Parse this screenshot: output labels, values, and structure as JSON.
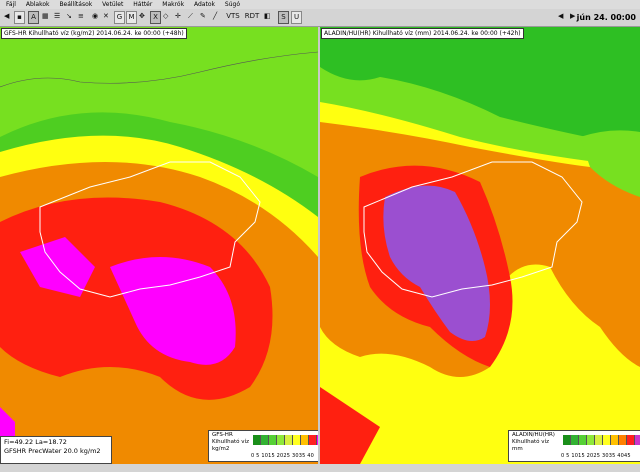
{
  "menu": [
    "Fájl",
    "Ablakok",
    "Beállítások",
    "Vetület",
    "Háttér",
    "Makrók",
    "Adatok",
    "Súgó"
  ],
  "toolbar": {
    "vts": "VTS",
    "rdt": "RDT",
    "s": "S",
    "u": "U",
    "a": "A",
    "g": "G",
    "m": "M",
    "x": "X",
    "date": "jún 24. 00:00"
  },
  "left_panel": {
    "title": "GFS-HR Kihullható víz (kg/m2) 2014.06.24. ke 00:00 (+48h)",
    "info_line1": "Fi=49.22  La=18.72",
    "info_line2": "GFSHR PrecWater   20.0 kg/m2",
    "legend_title1": "GFS-HR",
    "legend_title2": "Kihullható víz",
    "legend_unit": "kg/m2",
    "legend_ticks": "0  5 1015 2025 3035 40"
  },
  "right_panel": {
    "title": "ALADIN/HU(HR) Kihullható víz (mm) 2014.06.24. ke 00:00 (+42h)",
    "legend_title1": "ALADIN/HU(HR)",
    "legend_title2": "Kihullható víz",
    "legend_unit": "mm",
    "legend_ticks": "0  5 1015 2025 3035 4045"
  },
  "legend_colors": [
    "#1a8f1a",
    "#33b233",
    "#55d035",
    "#8ee83a",
    "#d8f040",
    "#ffff20",
    "#ffc000",
    "#ff8000",
    "#ff2020",
    "#e0e0e0",
    "#cc33cc",
    "#ff00ff"
  ],
  "colors": {
    "green": "#2ebf23",
    "light_green": "#77e020",
    "yellow": "#ffff10",
    "orange": "#f08a00",
    "red": "#ff2010",
    "magenta": "#ff00ff",
    "purple": "#9b4fd0"
  }
}
